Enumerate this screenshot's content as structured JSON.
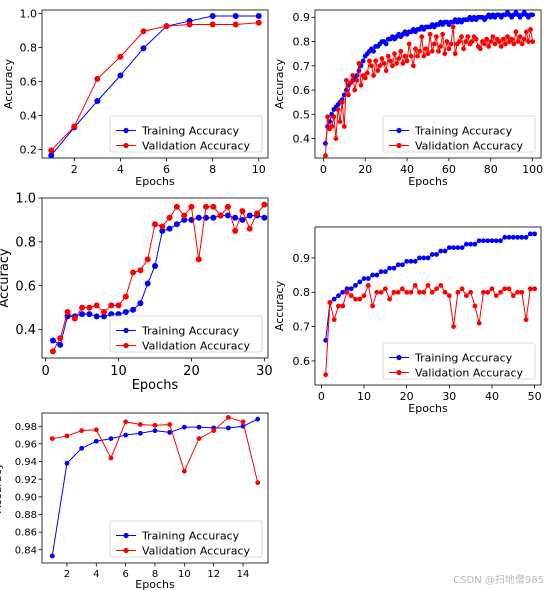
{
  "chart_data": [
    {
      "type": "line",
      "xlabel": "Epochs",
      "ylabel": "Accuracy",
      "xlim": [
        0.6,
        10.4
      ],
      "ylim": [
        0.15,
        1.02
      ],
      "xticks": [
        2,
        4,
        6,
        8,
        10
      ],
      "yticks": [
        0.2,
        0.4,
        0.6,
        0.8,
        1.0
      ],
      "legend": "lower-right",
      "series": [
        {
          "name": "Training Accuracy",
          "color": "#0000ff",
          "x": [
            1,
            2,
            3,
            4,
            5,
            6,
            7,
            8,
            9,
            10
          ],
          "y": [
            0.165,
            0.33,
            0.485,
            0.635,
            0.795,
            0.925,
            0.955,
            0.985,
            0.985,
            0.985
          ]
        },
        {
          "name": "Validation Accuracy",
          "color": "#ff0000",
          "x": [
            1,
            2,
            3,
            4,
            5,
            6,
            7,
            8,
            9,
            10
          ],
          "y": [
            0.195,
            0.335,
            0.615,
            0.745,
            0.895,
            0.925,
            0.935,
            0.935,
            0.935,
            0.945
          ]
        }
      ]
    },
    {
      "type": "line",
      "xlabel": "Epochs",
      "ylabel": "Accuracy",
      "xlim": [
        -4,
        104
      ],
      "ylim": [
        0.32,
        0.93
      ],
      "xticks": [
        0,
        20,
        40,
        60,
        80,
        100
      ],
      "yticks": [
        0.4,
        0.5,
        0.6,
        0.7,
        0.8,
        0.9
      ],
      "legend": "lower-right",
      "series": [
        {
          "name": "Training Accuracy",
          "color": "#0000ff",
          "x_start": 1,
          "y": [
            0.38,
            0.45,
            0.47,
            0.5,
            0.52,
            0.53,
            0.54,
            0.55,
            0.56,
            0.58,
            0.6,
            0.62,
            0.63,
            0.64,
            0.65,
            0.66,
            0.68,
            0.7,
            0.72,
            0.74,
            0.75,
            0.76,
            0.77,
            0.76,
            0.78,
            0.78,
            0.79,
            0.8,
            0.8,
            0.79,
            0.81,
            0.81,
            0.82,
            0.81,
            0.82,
            0.83,
            0.82,
            0.83,
            0.84,
            0.83,
            0.84,
            0.84,
            0.85,
            0.84,
            0.85,
            0.85,
            0.86,
            0.85,
            0.86,
            0.86,
            0.86,
            0.87,
            0.86,
            0.87,
            0.87,
            0.88,
            0.87,
            0.88,
            0.88,
            0.87,
            0.88,
            0.88,
            0.89,
            0.88,
            0.89,
            0.88,
            0.89,
            0.89,
            0.89,
            0.9,
            0.89,
            0.9,
            0.89,
            0.9,
            0.9,
            0.9,
            0.89,
            0.9,
            0.91,
            0.9,
            0.91,
            0.9,
            0.91,
            0.91,
            0.9,
            0.91,
            0.91,
            0.92,
            0.91,
            0.9,
            0.91,
            0.92,
            0.91,
            0.9,
            0.91,
            0.92,
            0.91,
            0.9,
            0.91,
            0.91
          ]
        },
        {
          "name": "Validation Accuracy",
          "color": "#ff0000",
          "x_start": 1,
          "y": [
            0.33,
            0.49,
            0.44,
            0.45,
            0.49,
            0.4,
            0.52,
            0.47,
            0.55,
            0.45,
            0.64,
            0.58,
            0.63,
            0.66,
            0.6,
            0.64,
            0.71,
            0.62,
            0.66,
            0.65,
            0.67,
            0.72,
            0.7,
            0.66,
            0.72,
            0.68,
            0.7,
            0.73,
            0.71,
            0.68,
            0.74,
            0.72,
            0.7,
            0.75,
            0.71,
            0.73,
            0.76,
            0.71,
            0.74,
            0.72,
            0.79,
            0.74,
            0.7,
            0.77,
            0.74,
            0.76,
            0.82,
            0.74,
            0.77,
            0.75,
            0.83,
            0.76,
            0.79,
            0.82,
            0.76,
            0.78,
            0.83,
            0.75,
            0.8,
            0.77,
            0.79,
            0.86,
            0.75,
            0.79,
            0.8,
            0.82,
            0.77,
            0.8,
            0.82,
            0.79,
            0.8,
            0.82,
            0.81,
            0.78,
            0.77,
            0.8,
            0.79,
            0.81,
            0.78,
            0.8,
            0.82,
            0.79,
            0.81,
            0.8,
            0.78,
            0.81,
            0.79,
            0.82,
            0.8,
            0.81,
            0.79,
            0.84,
            0.8,
            0.82,
            0.79,
            0.81,
            0.84,
            0.8,
            0.85,
            0.8
          ]
        }
      ]
    },
    {
      "type": "line",
      "xlabel": "Epochs",
      "ylabel": "Accuracy",
      "xlim": [
        -0.5,
        30.5
      ],
      "ylim": [
        0.27,
        1.0
      ],
      "xticks": [
        0,
        10,
        20,
        30
      ],
      "yticks": [
        0.4,
        0.6,
        0.8,
        1.0
      ],
      "legend": "lower-right",
      "series": [
        {
          "name": "Training Accuracy",
          "color": "#0000ff",
          "x_start": 1,
          "y": [
            0.35,
            0.33,
            0.46,
            0.46,
            0.47,
            0.47,
            0.46,
            0.46,
            0.47,
            0.47,
            0.48,
            0.49,
            0.52,
            0.61,
            0.69,
            0.85,
            0.86,
            0.88,
            0.9,
            0.9,
            0.91,
            0.91,
            0.91,
            0.92,
            0.92,
            0.91,
            0.9,
            0.92,
            0.92,
            0.91
          ]
        },
        {
          "name": "Validation Accuracy",
          "color": "#ff0000",
          "x_start": 1,
          "y": [
            0.3,
            0.36,
            0.48,
            0.45,
            0.5,
            0.5,
            0.51,
            0.48,
            0.51,
            0.51,
            0.55,
            0.66,
            0.67,
            0.72,
            0.88,
            0.87,
            0.91,
            0.96,
            0.92,
            0.96,
            0.72,
            0.96,
            0.96,
            0.92,
            0.96,
            0.85,
            0.94,
            0.86,
            0.93,
            0.97
          ]
        }
      ]
    },
    {
      "type": "line",
      "xlabel": "Epochs",
      "ylabel": "Accuracy",
      "xlim": [
        -1.5,
        51.5
      ],
      "ylim": [
        0.53,
        0.99
      ],
      "xticks": [
        0,
        10,
        20,
        30,
        40,
        50
      ],
      "yticks": [
        0.6,
        0.7,
        0.8,
        0.9
      ],
      "legend": "lower-right",
      "series": [
        {
          "name": "Training Accuracy",
          "color": "#0000ff",
          "x_start": 1,
          "y": [
            0.66,
            0.77,
            0.78,
            0.79,
            0.8,
            0.81,
            0.81,
            0.82,
            0.83,
            0.84,
            0.84,
            0.85,
            0.85,
            0.86,
            0.86,
            0.87,
            0.87,
            0.88,
            0.88,
            0.89,
            0.89,
            0.89,
            0.9,
            0.9,
            0.9,
            0.91,
            0.91,
            0.92,
            0.92,
            0.93,
            0.93,
            0.93,
            0.93,
            0.94,
            0.94,
            0.94,
            0.95,
            0.95,
            0.95,
            0.95,
            0.95,
            0.95,
            0.96,
            0.96,
            0.96,
            0.96,
            0.96,
            0.96,
            0.97,
            0.97
          ]
        },
        {
          "name": "Validation Accuracy",
          "color": "#ff0000",
          "x_start": 1,
          "y": [
            0.56,
            0.77,
            0.72,
            0.76,
            0.76,
            0.8,
            0.79,
            0.78,
            0.78,
            0.79,
            0.82,
            0.76,
            0.8,
            0.8,
            0.81,
            0.78,
            0.8,
            0.8,
            0.81,
            0.8,
            0.8,
            0.82,
            0.8,
            0.8,
            0.82,
            0.8,
            0.81,
            0.82,
            0.8,
            0.79,
            0.7,
            0.8,
            0.81,
            0.79,
            0.8,
            0.76,
            0.71,
            0.8,
            0.8,
            0.81,
            0.79,
            0.8,
            0.81,
            0.81,
            0.79,
            0.8,
            0.8,
            0.72,
            0.81,
            0.81
          ]
        }
      ]
    },
    {
      "type": "line",
      "xlabel": "Epochs",
      "ylabel": "Accuracy",
      "xlim": [
        0.3,
        15.7
      ],
      "ylim": [
        0.825,
        0.995
      ],
      "xticks": [
        2,
        4,
        6,
        8,
        10,
        12,
        14
      ],
      "yticks": [
        0.84,
        0.86,
        0.88,
        0.9,
        0.92,
        0.94,
        0.96,
        0.98
      ],
      "legend": "lower-right",
      "series": [
        {
          "name": "Training Accuracy",
          "color": "#0000ff",
          "x": [
            1,
            2,
            3,
            4,
            5,
            6,
            7,
            8,
            9,
            10,
            11,
            12,
            13,
            14,
            15
          ],
          "y": [
            0.833,
            0.938,
            0.955,
            0.963,
            0.966,
            0.97,
            0.972,
            0.975,
            0.973,
            0.979,
            0.979,
            0.978,
            0.978,
            0.98,
            0.988
          ]
        },
        {
          "name": "Validation Accuracy",
          "color": "#ff0000",
          "x": [
            1,
            2,
            3,
            4,
            5,
            6,
            7,
            8,
            9,
            10,
            11,
            12,
            13,
            14,
            15
          ],
          "y": [
            0.966,
            0.969,
            0.975,
            0.976,
            0.944,
            0.985,
            0.982,
            0.981,
            0.982,
            0.929,
            0.966,
            0.975,
            0.99,
            0.985,
            0.916
          ]
        }
      ]
    }
  ],
  "watermark": "CSDN @扫地僧985"
}
